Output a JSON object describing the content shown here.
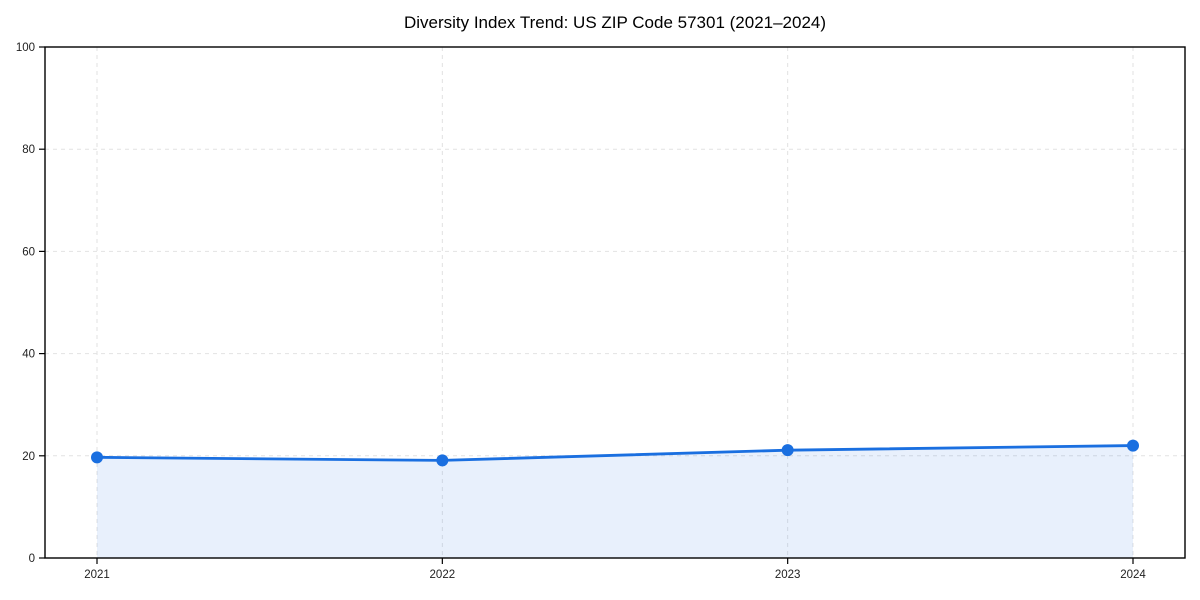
{
  "chart_data": {
    "type": "area",
    "title": "Diversity Index Trend: US ZIP Code 57301 (2021–2024)",
    "categories": [
      "2021",
      "2022",
      "2023",
      "2024"
    ],
    "series": [
      {
        "name": "Diversity Index",
        "values": [
          19.7,
          19.1,
          21.1,
          22.0
        ]
      }
    ],
    "xlabel": "",
    "ylabel": "",
    "ylim": [
      0,
      100
    ],
    "yticks": [
      0,
      20,
      40,
      60,
      80,
      100
    ],
    "grid": true,
    "grid_style": "dashed",
    "legend": "none",
    "colors": {
      "line": "#1a6fe0",
      "marker": "#1a6fe0",
      "area_fill": "rgba(26,111,224,0.10)",
      "grid": "#e2e2e2",
      "frame": "#000000",
      "tick_text": "#1f1f1f",
      "title_text": "#000000",
      "background": "#ffffff"
    }
  }
}
